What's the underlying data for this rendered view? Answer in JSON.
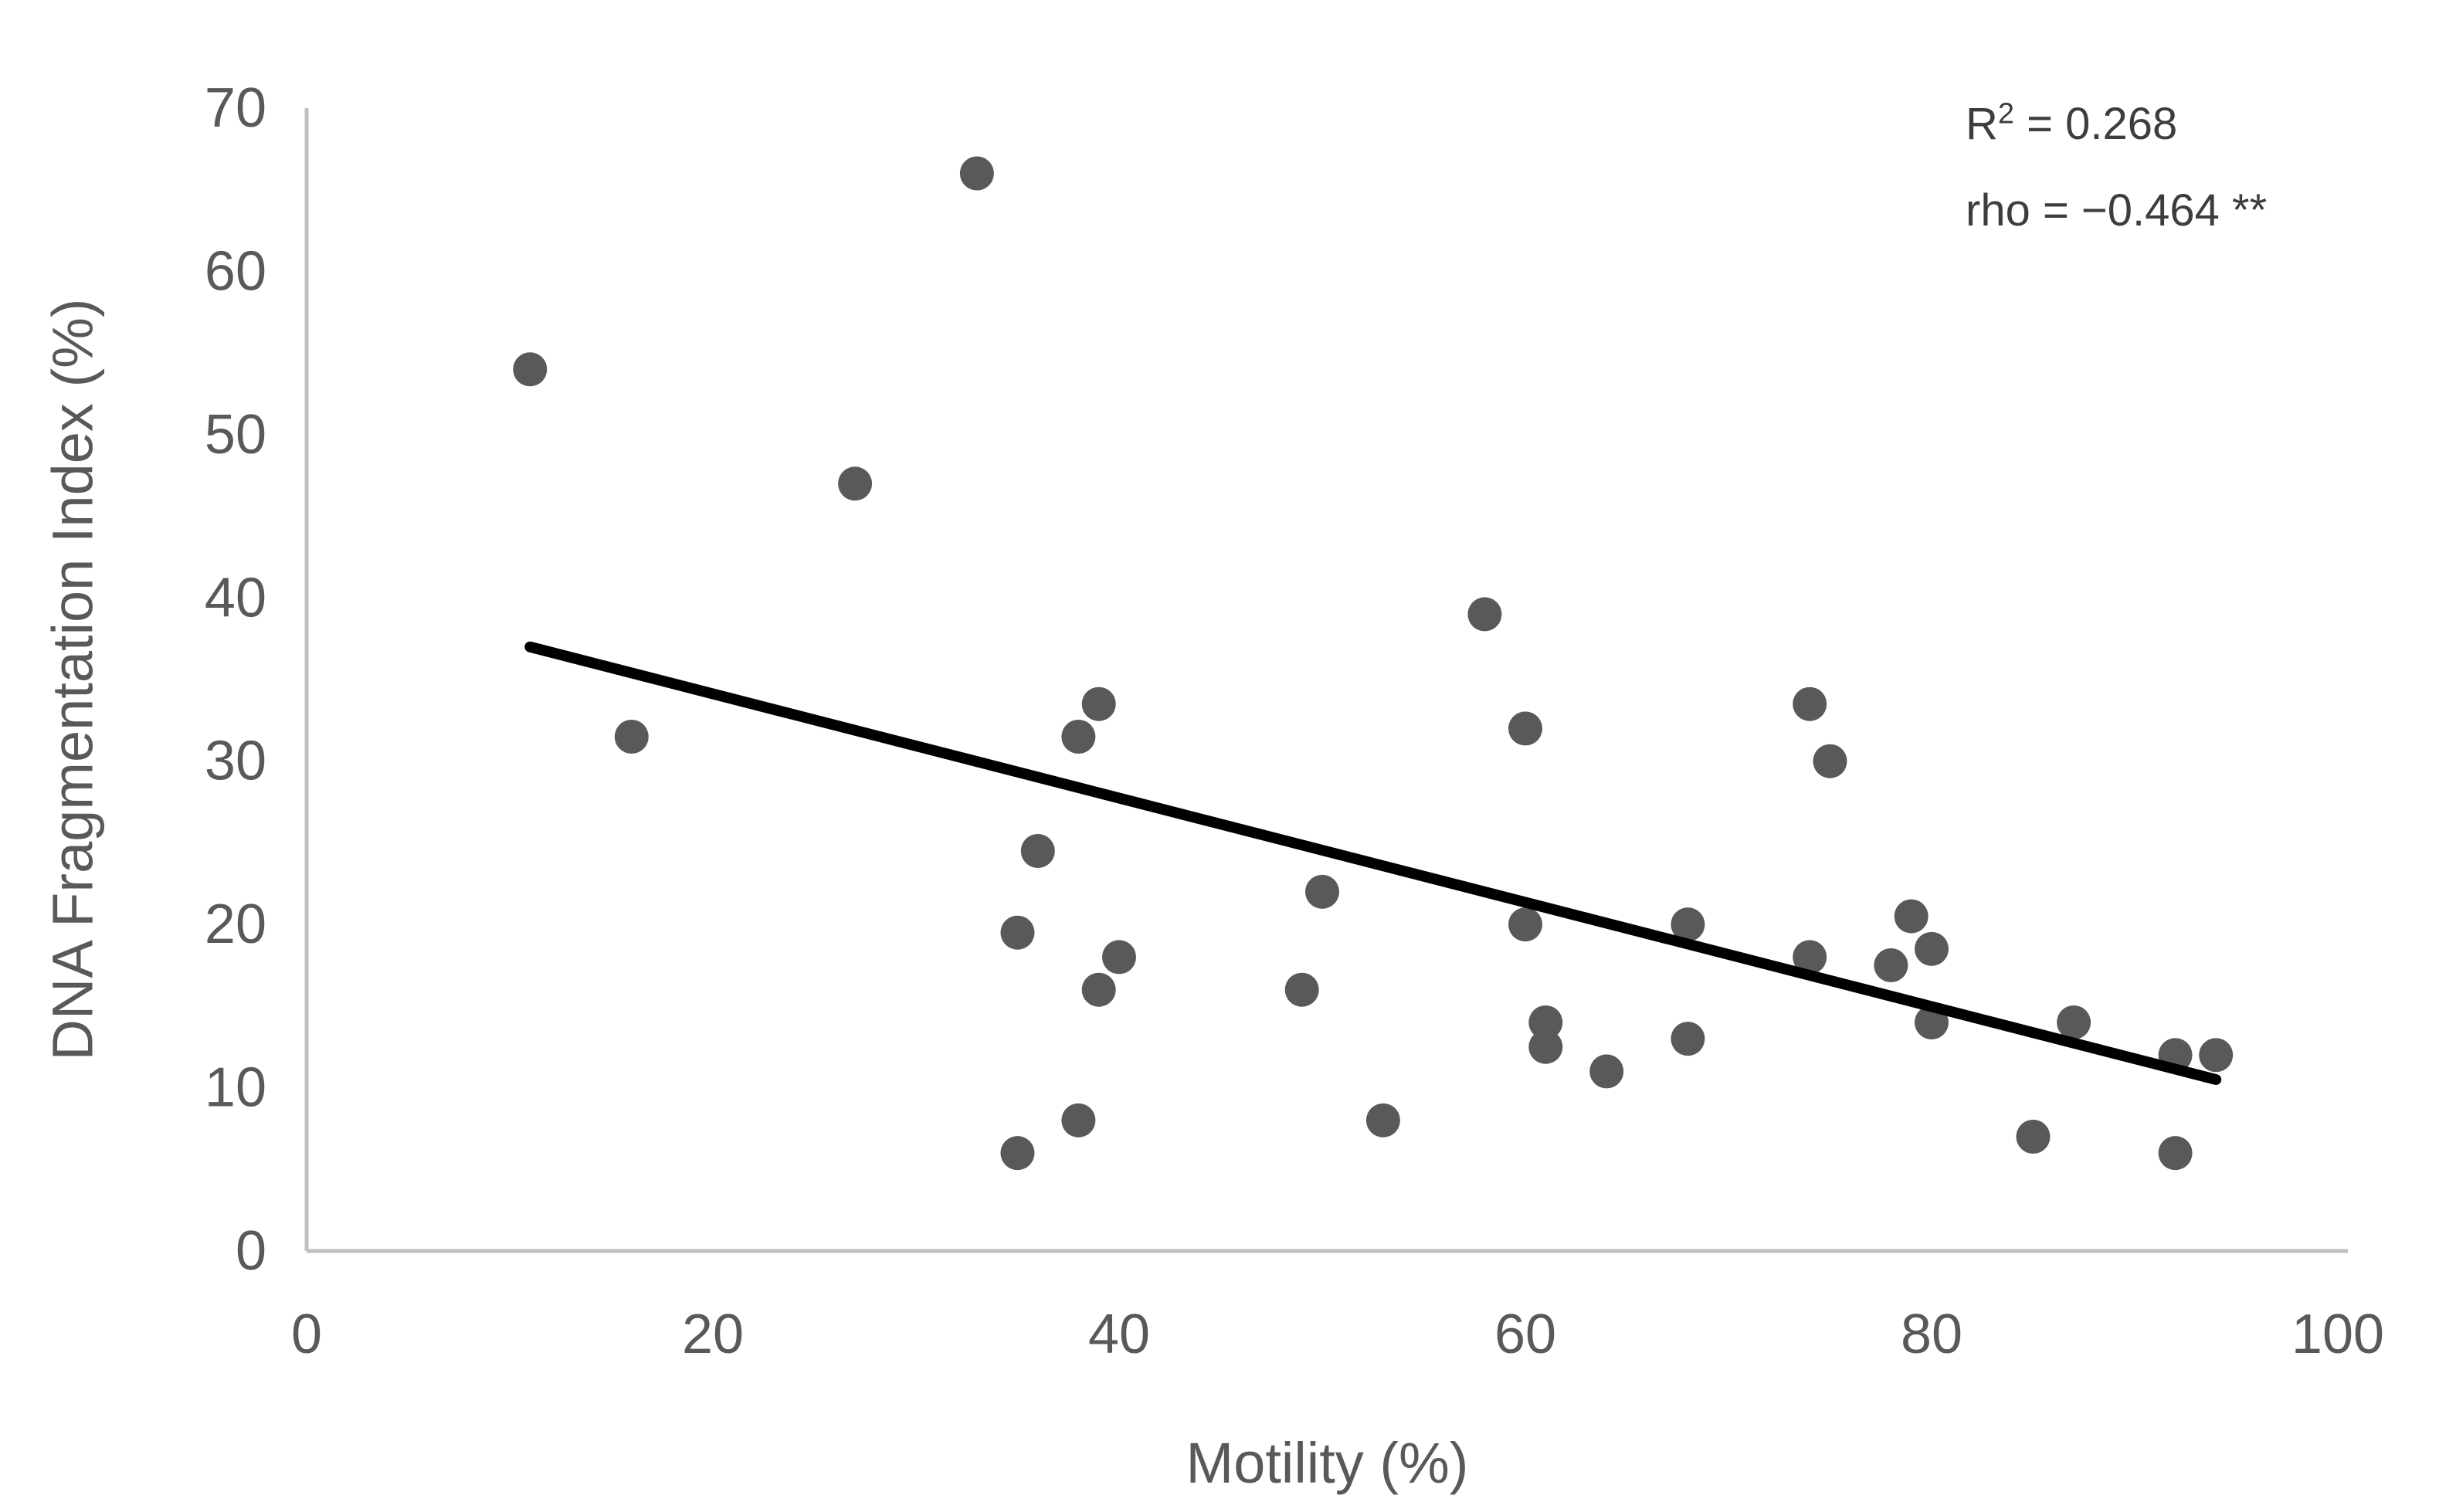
{
  "chart_data": {
    "type": "scatter",
    "title": "",
    "xlabel": "Motility (%)",
    "ylabel": "DNA Fragmentation Index (%)",
    "xlim": [
      0,
      100
    ],
    "ylim": [
      0,
      70
    ],
    "x_ticks": [
      0,
      20,
      40,
      60,
      80,
      100
    ],
    "y_ticks": [
      0,
      10,
      20,
      30,
      40,
      50,
      60,
      70
    ],
    "grid": false,
    "legend": null,
    "points": [
      [
        11,
        54
      ],
      [
        16,
        31.5
      ],
      [
        27,
        47
      ],
      [
        33,
        66
      ],
      [
        35,
        6
      ],
      [
        35,
        19.5
      ],
      [
        36,
        24.5
      ],
      [
        38,
        8
      ],
      [
        38,
        31.5
      ],
      [
        39,
        16
      ],
      [
        39,
        33.5
      ],
      [
        40,
        18
      ],
      [
        49,
        16
      ],
      [
        50,
        22
      ],
      [
        53,
        8
      ],
      [
        58,
        39
      ],
      [
        60,
        20
      ],
      [
        60,
        32
      ],
      [
        61,
        12.5
      ],
      [
        61,
        14
      ],
      [
        64,
        11
      ],
      [
        68,
        13
      ],
      [
        68,
        20
      ],
      [
        74,
        18
      ],
      [
        74,
        33.5
      ],
      [
        75,
        30
      ],
      [
        78,
        17.5
      ],
      [
        79,
        20.5
      ],
      [
        80,
        14
      ],
      [
        80,
        18.5
      ],
      [
        85,
        7
      ],
      [
        87,
        14
      ],
      [
        92,
        6
      ],
      [
        92,
        12
      ],
      [
        94,
        12
      ]
    ],
    "trendline": {
      "x1": 11,
      "y1": 37,
      "x2": 94,
      "y2": 10.5
    },
    "annotation": {
      "r2_prefix": "R",
      "r2_sup": "2",
      "r2_rest": " = 0.268",
      "rho_line": "rho = −0.464 **"
    },
    "colors": {
      "point": "#595959",
      "trendline": "#000000",
      "axis_line": "#bfbfbf",
      "tick_text": "#595959",
      "annotation_text": "#3d3d3d"
    }
  }
}
